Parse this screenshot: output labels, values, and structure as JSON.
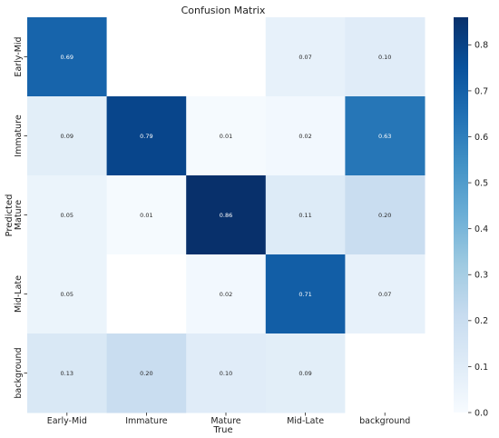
{
  "chart_data": {
    "type": "heatmap",
    "title": "Confusion Matrix",
    "xlabel": "True",
    "ylabel": "Predicted",
    "x_categories": [
      "Early-Mid",
      "Immature",
      "Mature",
      "Mid-Late",
      "background"
    ],
    "y_categories": [
      "Early-Mid",
      "Immature",
      "Mature",
      "Mid-Late",
      "background"
    ],
    "values": [
      [
        0.69,
        null,
        null,
        0.07,
        0.1
      ],
      [
        0.09,
        0.79,
        0.01,
        0.02,
        0.63
      ],
      [
        0.05,
        0.01,
        0.86,
        0.11,
        0.2
      ],
      [
        0.05,
        null,
        0.02,
        0.71,
        0.07
      ],
      [
        0.13,
        0.2,
        0.1,
        0.09,
        null
      ]
    ],
    "colormap": "Blues",
    "vmin": 0.0,
    "vmax": 0.86,
    "colorbar_ticks": [
      "0.0",
      "0.1",
      "0.2",
      "0.3",
      "0.4",
      "0.5",
      "0.6",
      "0.7",
      "0.8"
    ],
    "grid": false,
    "legend": "colorbar-right"
  }
}
